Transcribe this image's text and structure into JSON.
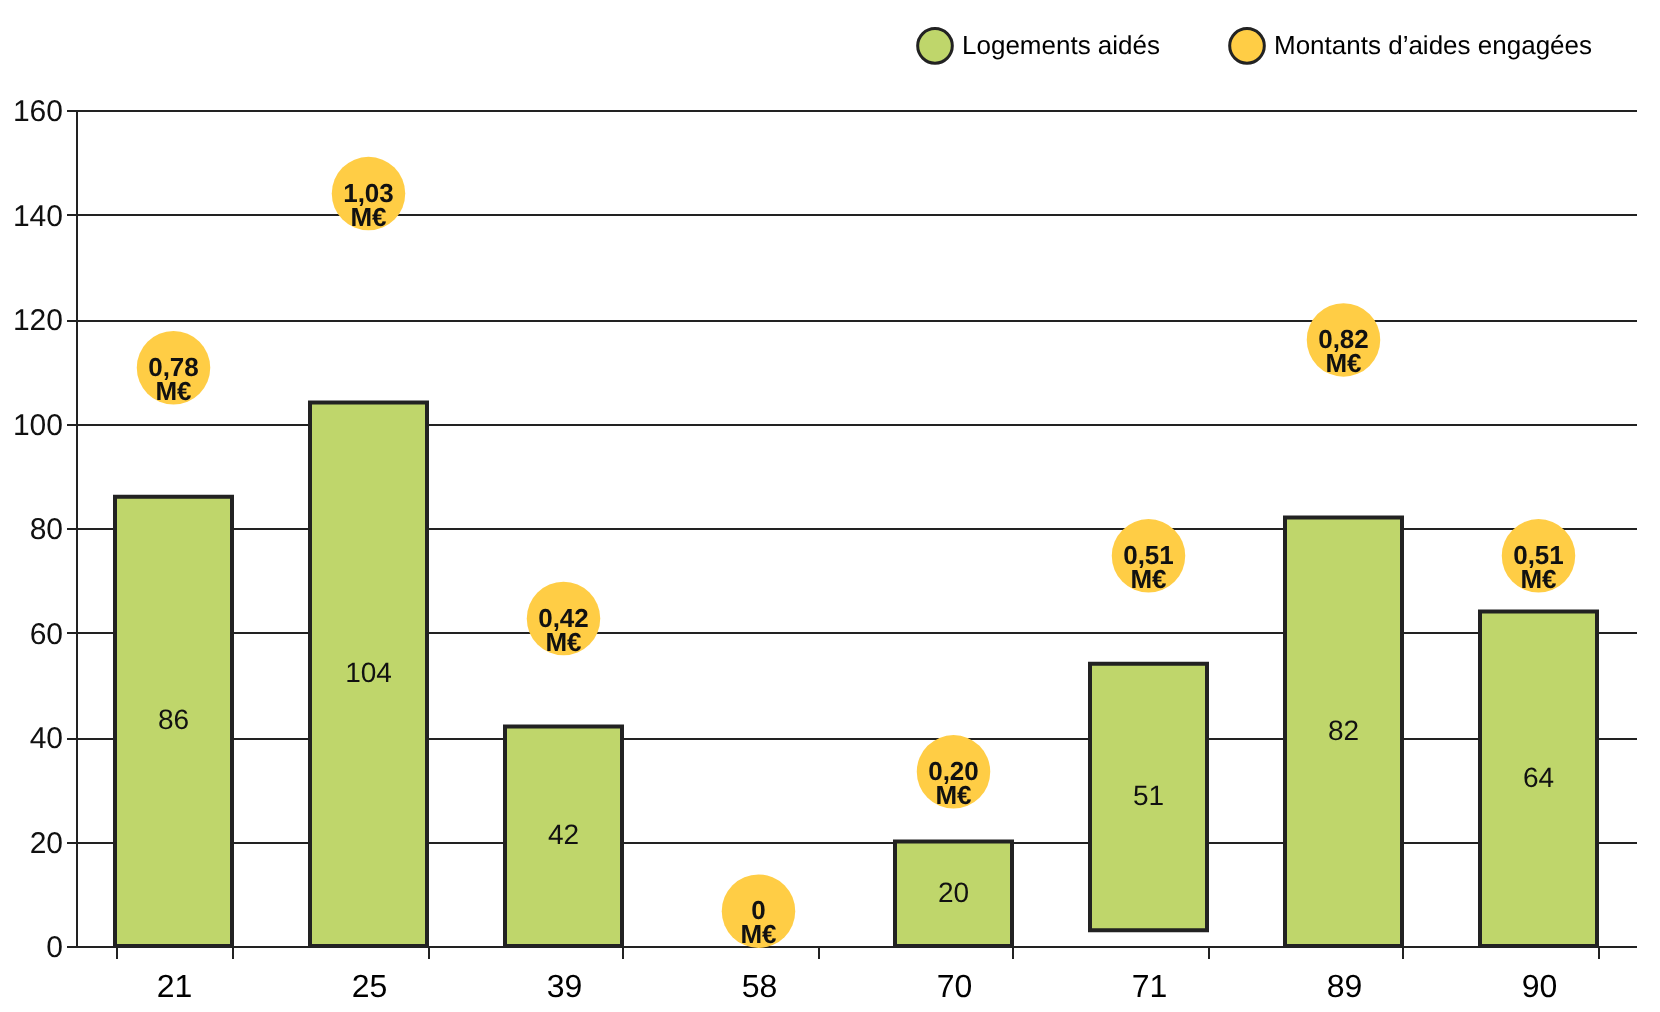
{
  "chart_data": {
    "type": "bar",
    "categories": [
      "21",
      "25",
      "39",
      "58",
      "70",
      "71",
      "89",
      "90"
    ],
    "ylim": [
      0,
      160
    ],
    "yticks": [
      0,
      20,
      40,
      60,
      80,
      100,
      120,
      140,
      160
    ],
    "grid": "y",
    "legend": "top right",
    "y2lim": [
      -0.05,
      1.15
    ],
    "series": [
      {
        "name": "Logements aidés",
        "color": "#bfd66b",
        "values": [
          86,
          104,
          42,
          null,
          20,
          51,
          82,
          64
        ],
        "base": [
          0,
          0,
          0,
          null,
          0,
          3,
          0,
          0
        ],
        "value_labels": [
          "86",
          "104",
          "42",
          null,
          "20",
          "51",
          "82",
          "64"
        ]
      },
      {
        "name": "Montants d’aides engagées",
        "type": "scatter",
        "marker": "circle",
        "axis": "y2",
        "color": "#ffcd45",
        "values": [
          0.78,
          1.03,
          0.42,
          0,
          0.2,
          0.51,
          0.82,
          0.51
        ],
        "value_labels": [
          "0,78 M€",
          "1,03 M€",
          "0,42 M€",
          "0 M€",
          "0,20 M€",
          "0,51 M€",
          "0,82 M€",
          "0,51 M€"
        ]
      }
    ]
  }
}
